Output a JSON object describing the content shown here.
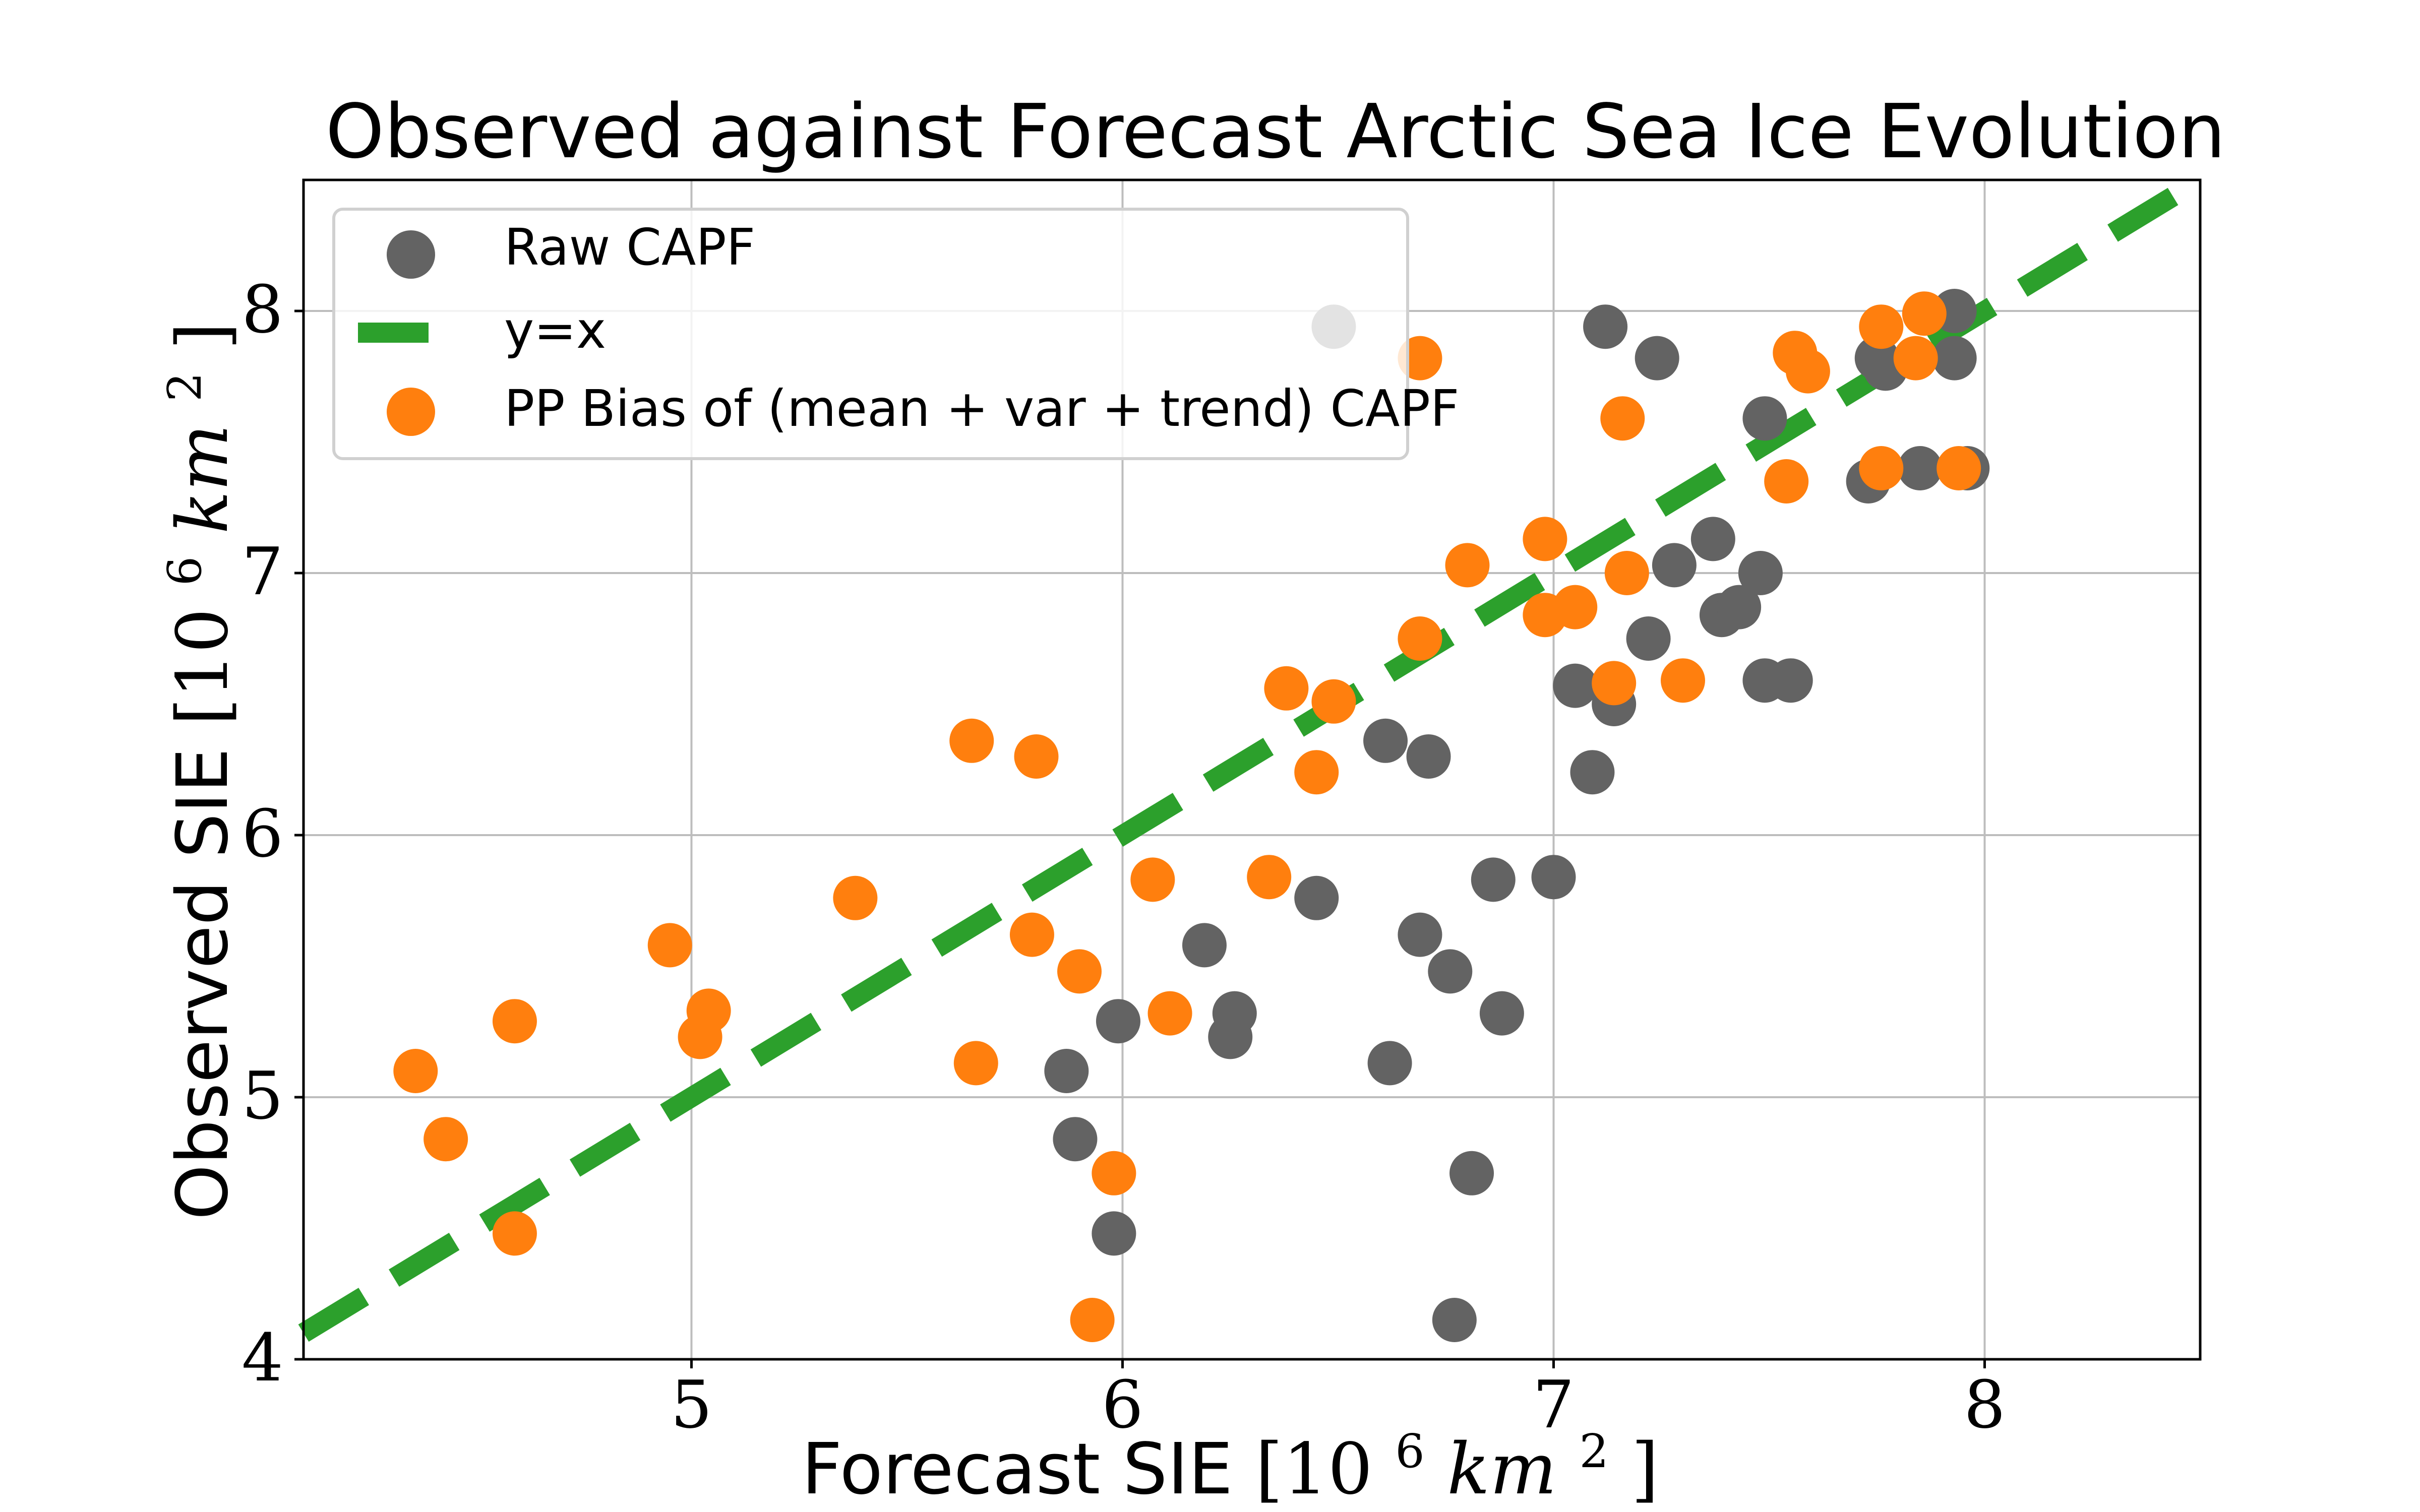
{
  "chart_data": {
    "type": "scatter",
    "title": "Observed against Forecast Arctic Sea Ice Evolution",
    "xlabel": {
      "prefix": "Forecast SIE ",
      "math": "[10",
      "superscript": "6",
      "unit": "km",
      "unit_power": "2",
      "suffix": "]"
    },
    "ylabel": {
      "prefix": "Observed SIE ",
      "math": "[10",
      "superscript": "6",
      "unit": "km",
      "unit_power": "2",
      "suffix": "]"
    },
    "xlim": [
      4.1,
      8.5
    ],
    "ylim": [
      4.0,
      8.5
    ],
    "x_ticks": [
      {
        "value": 5,
        "label": "5"
      },
      {
        "value": 6,
        "label": "6"
      },
      {
        "value": 7,
        "label": "7"
      },
      {
        "value": 8,
        "label": "8"
      }
    ],
    "y_ticks": [
      {
        "value": 4,
        "label": "4"
      },
      {
        "value": 5,
        "label": "5"
      },
      {
        "value": 6,
        "label": "6"
      },
      {
        "value": 7,
        "label": "7"
      },
      {
        "value": 8,
        "label": "8"
      }
    ],
    "grid": true,
    "legend": {
      "position": "top-left",
      "entries": [
        {
          "label": "Raw CAPF",
          "kind": "marker",
          "color": "#636363"
        },
        {
          "label": "y=x",
          "kind": "line",
          "color": "#2ca02c"
        },
        {
          "label": "PP Bias of (mean + var + trend) CAPF",
          "kind": "marker",
          "color": "#ff7f0e"
        }
      ]
    },
    "series": [
      {
        "name": "Raw CAPF",
        "kind": "scatter",
        "color": "#636363",
        "points": [
          {
            "x": 6.49,
            "y": 7.94
          },
          {
            "x": 7.12,
            "y": 7.94
          },
          {
            "x": 7.24,
            "y": 7.82
          },
          {
            "x": 7.49,
            "y": 7.59
          },
          {
            "x": 7.73,
            "y": 7.35
          },
          {
            "x": 7.75,
            "y": 7.82
          },
          {
            "x": 7.77,
            "y": 7.78
          },
          {
            "x": 7.85,
            "y": 7.4
          },
          {
            "x": 7.93,
            "y": 8.0
          },
          {
            "x": 7.93,
            "y": 7.82
          },
          {
            "x": 7.96,
            "y": 7.4
          },
          {
            "x": 7.28,
            "y": 7.03
          },
          {
            "x": 7.37,
            "y": 7.13
          },
          {
            "x": 7.48,
            "y": 7.0
          },
          {
            "x": 7.22,
            "y": 6.75
          },
          {
            "x": 7.39,
            "y": 6.84
          },
          {
            "x": 7.43,
            "y": 6.87
          },
          {
            "x": 7.05,
            "y": 6.57
          },
          {
            "x": 7.14,
            "y": 6.5
          },
          {
            "x": 7.49,
            "y": 6.59
          },
          {
            "x": 7.55,
            "y": 6.59
          },
          {
            "x": 6.61,
            "y": 6.36
          },
          {
            "x": 6.71,
            "y": 6.3
          },
          {
            "x": 7.09,
            "y": 6.24
          },
          {
            "x": 6.86,
            "y": 5.83
          },
          {
            "x": 7.0,
            "y": 5.84
          },
          {
            "x": 6.45,
            "y": 5.76
          },
          {
            "x": 6.69,
            "y": 5.62
          },
          {
            "x": 6.76,
            "y": 5.48
          },
          {
            "x": 6.88,
            "y": 5.32
          },
          {
            "x": 6.62,
            "y": 5.13
          },
          {
            "x": 6.19,
            "y": 5.58
          },
          {
            "x": 6.26,
            "y": 5.32
          },
          {
            "x": 6.25,
            "y": 5.23
          },
          {
            "x": 5.99,
            "y": 5.29
          },
          {
            "x": 5.87,
            "y": 5.1
          },
          {
            "x": 5.89,
            "y": 4.84
          },
          {
            "x": 5.98,
            "y": 4.48
          },
          {
            "x": 6.81,
            "y": 4.71
          },
          {
            "x": 6.77,
            "y": 4.15
          }
        ]
      },
      {
        "name": "y=x",
        "kind": "line",
        "color": "#2ca02c",
        "points": [
          {
            "x": 4.1,
            "y": 4.1
          },
          {
            "x": 8.5,
            "y": 8.5
          }
        ]
      },
      {
        "name": "PP Bias of (mean + var + trend) CAPF",
        "kind": "scatter",
        "color": "#ff7f0e",
        "points": [
          {
            "x": 6.69,
            "y": 7.82
          },
          {
            "x": 7.16,
            "y": 7.59
          },
          {
            "x": 7.56,
            "y": 7.84
          },
          {
            "x": 7.59,
            "y": 7.77
          },
          {
            "x": 7.76,
            "y": 7.94
          },
          {
            "x": 7.86,
            "y": 7.99
          },
          {
            "x": 7.84,
            "y": 7.82
          },
          {
            "x": 7.54,
            "y": 7.35
          },
          {
            "x": 7.76,
            "y": 7.4
          },
          {
            "x": 7.94,
            "y": 7.4
          },
          {
            "x": 6.98,
            "y": 7.13
          },
          {
            "x": 6.8,
            "y": 7.03
          },
          {
            "x": 7.17,
            "y": 7.0
          },
          {
            "x": 6.69,
            "y": 6.75
          },
          {
            "x": 6.98,
            "y": 6.84
          },
          {
            "x": 7.05,
            "y": 6.87
          },
          {
            "x": 6.38,
            "y": 6.56
          },
          {
            "x": 6.49,
            "y": 6.51
          },
          {
            "x": 7.14,
            "y": 6.58
          },
          {
            "x": 7.3,
            "y": 6.59
          },
          {
            "x": 6.45,
            "y": 6.24
          },
          {
            "x": 5.65,
            "y": 6.36
          },
          {
            "x": 5.8,
            "y": 6.3
          },
          {
            "x": 5.38,
            "y": 5.76
          },
          {
            "x": 6.07,
            "y": 5.83
          },
          {
            "x": 6.34,
            "y": 5.84
          },
          {
            "x": 4.95,
            "y": 5.58
          },
          {
            "x": 5.79,
            "y": 5.62
          },
          {
            "x": 5.9,
            "y": 5.48
          },
          {
            "x": 5.04,
            "y": 5.33
          },
          {
            "x": 5.02,
            "y": 5.23
          },
          {
            "x": 6.11,
            "y": 5.32
          },
          {
            "x": 5.66,
            "y": 5.13
          },
          {
            "x": 4.59,
            "y": 5.29
          },
          {
            "x": 4.36,
            "y": 5.1
          },
          {
            "x": 4.43,
            "y": 4.84
          },
          {
            "x": 4.59,
            "y": 4.48
          },
          {
            "x": 5.98,
            "y": 4.71
          },
          {
            "x": 5.93,
            "y": 4.15
          }
        ]
      }
    ]
  }
}
